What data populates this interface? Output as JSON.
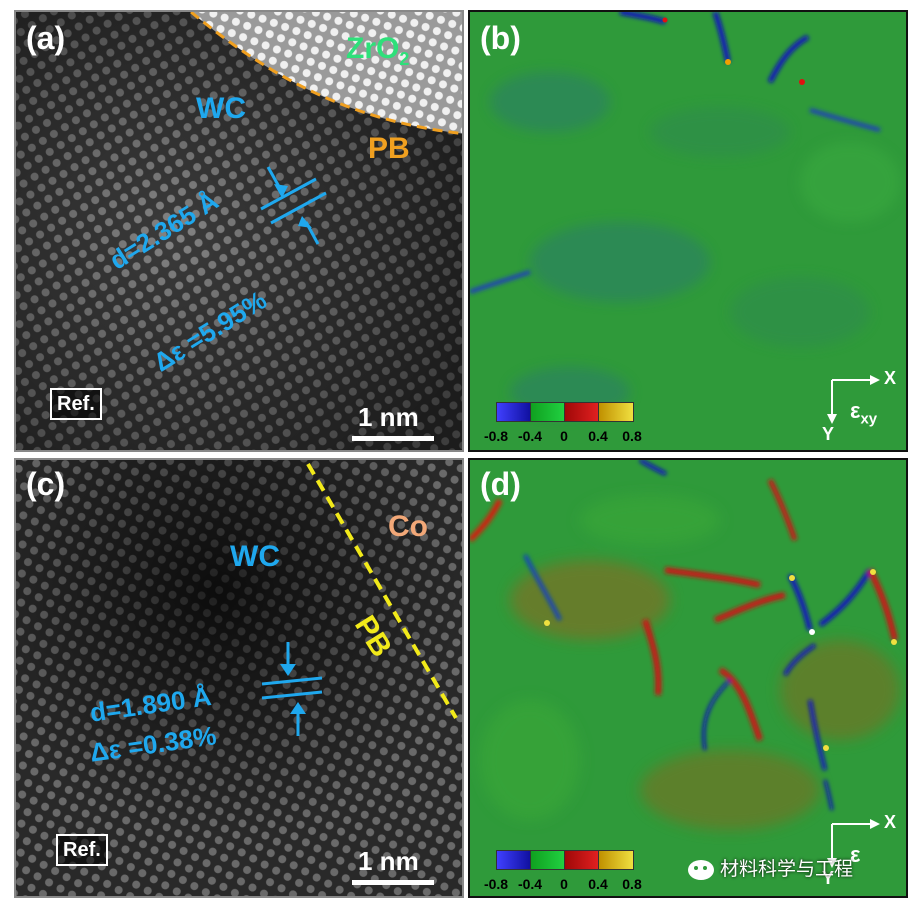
{
  "panels": {
    "a": {
      "letter": "(a)",
      "phase_top": "ZrO",
      "phase_top_sub": "2",
      "phase_main": "WC",
      "boundary": "PB",
      "d_spacing": "d=2.365 Å",
      "strain": "Δε =5.95%",
      "ref": "Ref.",
      "scale": "1 nm"
    },
    "b": {
      "letter": "(b)",
      "axis_x": "X",
      "axis_y": "Y",
      "component": "ε",
      "component_sub": "xy",
      "colorbar_ticks": [
        "-0.8",
        "-0.4",
        "0",
        "0.4",
        "0.8"
      ]
    },
    "c": {
      "letter": "(c)",
      "phase_top": "Co",
      "phase_main": "WC",
      "boundary": "PB",
      "d_spacing": "d=1.890 Å",
      "strain": "Δε =0.38%",
      "ref": "Ref.",
      "scale": "1 nm"
    },
    "d": {
      "letter": "(d)",
      "axis_x": "X",
      "axis_y": "Y",
      "component": "ε",
      "colorbar_ticks": [
        "-0.8",
        "-0.4",
        "0",
        "0.4",
        "0.8"
      ]
    }
  },
  "watermark": "材料科学与工程",
  "colors": {
    "cyan_label": "#1fa8ee",
    "boundary_a": "#f0a020",
    "boundary_c": "#f2ea1a",
    "zro2": "#2ee07a",
    "co": "#f2a878",
    "map_green": "#2f9a3a",
    "colorbar": [
      "#2020d0",
      "#18b428",
      "#c81010",
      "#e0c000"
    ]
  }
}
